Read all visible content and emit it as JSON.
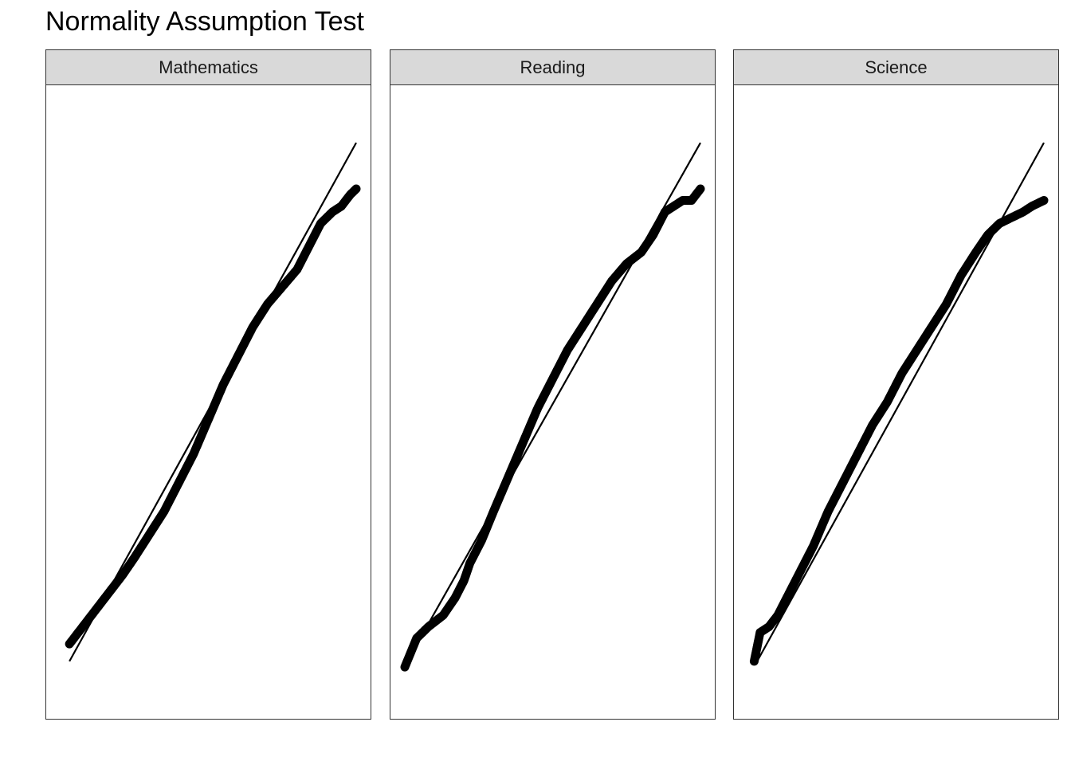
{
  "title": "Normality Assumption Test",
  "chart_data": {
    "type": "scatter",
    "subtype": "qq-plot",
    "title": "Normality Assumption Test",
    "xlabel": "",
    "ylabel": "",
    "axes_shown": false,
    "grid": false,
    "point_color": "#000000",
    "line_color": "#000000",
    "panels": [
      {
        "name": "Mathematics",
        "reference_line": [
          [
            0.03,
            0.05
          ],
          [
            1.0,
            0.95
          ]
        ],
        "points": [
          [
            0.03,
            0.08
          ],
          [
            0.06,
            0.1
          ],
          [
            0.09,
            0.12
          ],
          [
            0.12,
            0.14
          ],
          [
            0.15,
            0.16
          ],
          [
            0.18,
            0.18
          ],
          [
            0.21,
            0.2
          ],
          [
            0.25,
            0.23
          ],
          [
            0.3,
            0.27
          ],
          [
            0.35,
            0.31
          ],
          [
            0.4,
            0.36
          ],
          [
            0.45,
            0.41
          ],
          [
            0.5,
            0.47
          ],
          [
            0.55,
            0.53
          ],
          [
            0.6,
            0.58
          ],
          [
            0.65,
            0.63
          ],
          [
            0.7,
            0.67
          ],
          [
            0.75,
            0.7
          ],
          [
            0.8,
            0.73
          ],
          [
            0.84,
            0.77
          ],
          [
            0.88,
            0.81
          ],
          [
            0.92,
            0.83
          ],
          [
            0.95,
            0.84
          ],
          [
            0.98,
            0.86
          ],
          [
            1.0,
            0.87
          ]
        ]
      },
      {
        "name": "Reading",
        "reference_line": [
          [
            0.03,
            0.07
          ],
          [
            1.0,
            0.95
          ]
        ],
        "points": [
          [
            0.0,
            0.04
          ],
          [
            0.04,
            0.09
          ],
          [
            0.08,
            0.11
          ],
          [
            0.13,
            0.13
          ],
          [
            0.17,
            0.16
          ],
          [
            0.2,
            0.19
          ],
          [
            0.22,
            0.22
          ],
          [
            0.26,
            0.26
          ],
          [
            0.3,
            0.31
          ],
          [
            0.35,
            0.37
          ],
          [
            0.4,
            0.43
          ],
          [
            0.45,
            0.49
          ],
          [
            0.5,
            0.54
          ],
          [
            0.55,
            0.59
          ],
          [
            0.6,
            0.63
          ],
          [
            0.65,
            0.67
          ],
          [
            0.7,
            0.71
          ],
          [
            0.75,
            0.74
          ],
          [
            0.8,
            0.76
          ],
          [
            0.84,
            0.79
          ],
          [
            0.88,
            0.83
          ],
          [
            0.91,
            0.84
          ],
          [
            0.94,
            0.85
          ],
          [
            0.97,
            0.85
          ],
          [
            1.0,
            0.87
          ]
        ]
      },
      {
        "name": "Science",
        "reference_line": [
          [
            0.03,
            0.05
          ],
          [
            1.0,
            0.95
          ]
        ],
        "points": [
          [
            0.02,
            0.05
          ],
          [
            0.04,
            0.1
          ],
          [
            0.07,
            0.11
          ],
          [
            0.1,
            0.13
          ],
          [
            0.13,
            0.16
          ],
          [
            0.17,
            0.2
          ],
          [
            0.22,
            0.25
          ],
          [
            0.27,
            0.31
          ],
          [
            0.32,
            0.36
          ],
          [
            0.37,
            0.41
          ],
          [
            0.42,
            0.46
          ],
          [
            0.47,
            0.5
          ],
          [
            0.52,
            0.55
          ],
          [
            0.57,
            0.59
          ],
          [
            0.62,
            0.63
          ],
          [
            0.67,
            0.67
          ],
          [
            0.72,
            0.72
          ],
          [
            0.77,
            0.76
          ],
          [
            0.81,
            0.79
          ],
          [
            0.85,
            0.81
          ],
          [
            0.89,
            0.82
          ],
          [
            0.93,
            0.83
          ],
          [
            0.96,
            0.84
          ],
          [
            1.0,
            0.85
          ]
        ]
      }
    ]
  }
}
